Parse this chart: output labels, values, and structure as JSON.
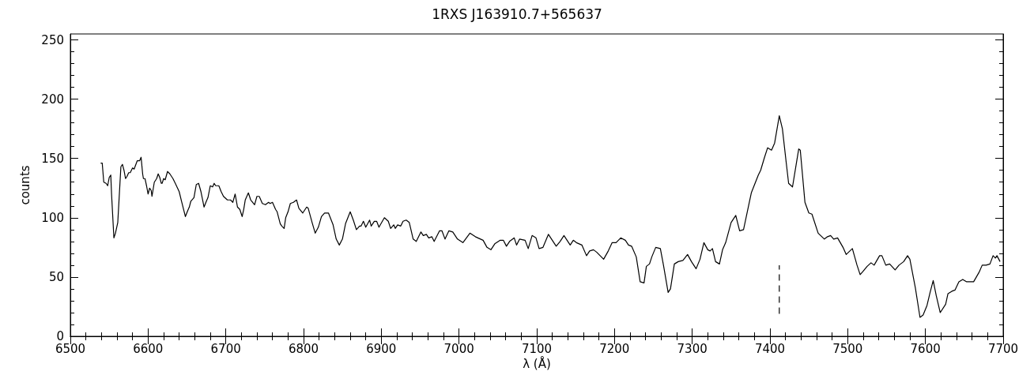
{
  "chart_data": {
    "type": "line",
    "title": "1RXS J163910.7+565637",
    "xlabel": "λ (Å)",
    "ylabel": "counts",
    "xlim": [
      6500,
      7700
    ],
    "xticks": [
      6500,
      6600,
      6700,
      6800,
      6900,
      7000,
      7100,
      7200,
      7300,
      7400,
      7500,
      7600,
      7700
    ],
    "ylim": [
      0,
      255
    ],
    "yticks": [
      0,
      50,
      100,
      150,
      200,
      250
    ],
    "grid": false,
    "marker": "none",
    "series": [
      {
        "color": "#000000",
        "line_style": "solid",
        "x": [
          6539,
          6541,
          6543,
          6546,
          6548,
          6550,
          6552,
          6553,
          6556,
          6558,
          6561,
          6565,
          6567,
          6569,
          6571,
          6573,
          6575,
          6577,
          6580,
          6582,
          6586,
          6589,
          6591,
          6593,
          6594,
          6596,
          6598,
          6600,
          6602,
          6604,
          6605,
          6608,
          6611,
          6613,
          6615,
          6617,
          6618,
          6620,
          6622,
          6625,
          6628,
          6632,
          6635,
          6640,
          6643,
          6648,
          6651,
          6653,
          6655,
          6659,
          6662,
          6665,
          6668,
          6672,
          6675,
          6677,
          6680,
          6683,
          6685,
          6687,
          6691,
          6694,
          6697,
          6702,
          6706,
          6709,
          6712,
          6715,
          6718,
          6721,
          6723,
          6725,
          6729,
          6732,
          6737,
          6740,
          6743,
          6747,
          6751,
          6755,
          6757,
          6760,
          6764,
          6766,
          6770,
          6772,
          6775,
          6777,
          6780,
          6783,
          6787,
          6791,
          6794,
          6799,
          6804,
          6806,
          6811,
          6815,
          6819,
          6823,
          6827,
          6832,
          6835,
          6838,
          6842,
          6846,
          6850,
          6854,
          6860,
          6864,
          6868,
          6872,
          6874,
          6877,
          6880,
          6885,
          6887,
          6891,
          6894,
          6897,
          6904,
          6909,
          6912,
          6916,
          6918,
          6921,
          6925,
          6928,
          6932,
          6936,
          6941,
          6945,
          6951,
          6954,
          6958,
          6961,
          6965,
          6968,
          6975,
          6978,
          6982,
          6987,
          6992,
          6998,
          7005,
          7014,
          7021,
          7031,
          7036,
          7041,
          7046,
          7053,
          7057,
          7061,
          7065,
          7071,
          7074,
          7078,
          7085,
          7089,
          7094,
          7099,
          7103,
          7108,
          7115,
          7125,
          7130,
          7135,
          7139,
          7143,
          7147,
          7151,
          7158,
          7164,
          7168,
          7173,
          7177,
          7186,
          7192,
          7197,
          7202,
          7208,
          7214,
          7218,
          7222,
          7228,
          7233,
          7238,
          7241,
          7245,
          7248,
          7253,
          7259,
          7263,
          7269,
          7272,
          7277,
          7282,
          7288,
          7294,
          7299,
          7305,
          7310,
          7315,
          7320,
          7323,
          7326,
          7330,
          7335,
          7339,
          7343,
          7350,
          7356,
          7361,
          7366,
          7376,
          7385,
          7388,
          7393,
          7397,
          7402,
          7406,
          7412,
          7416,
          7421,
          7424,
          7429,
          7434,
          7437,
          7439,
          7445,
          7450,
          7454,
          7462,
          7470,
          7474,
          7478,
          7482,
          7487,
          7494,
          7498,
          7506,
          7512,
          7516,
          7520,
          7525,
          7530,
          7534,
          7541,
          7544,
          7549,
          7554,
          7561,
          7566,
          7572,
          7577,
          7580,
          7587,
          7593,
          7597,
          7602,
          7606,
          7610,
          7614,
          7619,
          7626,
          7629,
          7634,
          7638,
          7643,
          7648,
          7653,
          7658,
          7662,
          7669,
          7673,
          7678,
          7683,
          7687,
          7690,
          7692,
          7696
        ],
        "values": [
          146,
          146,
          130,
          129,
          127,
          134,
          136,
          120,
          83,
          87,
          96,
          143,
          145,
          140,
          133,
          135,
          138,
          138,
          142,
          141,
          148,
          148,
          151,
          137,
          133,
          133,
          127,
          120,
          125,
          123,
          118,
          130,
          133,
          137,
          134,
          129,
          129,
          133,
          132,
          139,
          137,
          133,
          129,
          122,
          114,
          101,
          106,
          109,
          114,
          117,
          128,
          129,
          122,
          109,
          114,
          117,
          127,
          126,
          129,
          127,
          127,
          122,
          118,
          115,
          115,
          113,
          120,
          109,
          107,
          101,
          107,
          115,
          121,
          115,
          111,
          118,
          118,
          112,
          111,
          113,
          112,
          113,
          107,
          105,
          95,
          93,
          91,
          100,
          105,
          112,
          113,
          115,
          108,
          104,
          109,
          108,
          96,
          87,
          92,
          101,
          104,
          104,
          99,
          94,
          82,
          77,
          82,
          95,
          105,
          98,
          90,
          93,
          93,
          97,
          92,
          98,
          93,
          97,
          97,
          92,
          100,
          97,
          91,
          94,
          91,
          94,
          93,
          97,
          98,
          96,
          82,
          80,
          88,
          85,
          86,
          83,
          84,
          80,
          89,
          89,
          82,
          89,
          88,
          82,
          79,
          87,
          84,
          81,
          75,
          73,
          78,
          81,
          81,
          76,
          80,
          83,
          77,
          82,
          81,
          74,
          85,
          83,
          74,
          75,
          86,
          76,
          80,
          85,
          81,
          77,
          81,
          79,
          77,
          68,
          72,
          73,
          71,
          65,
          72,
          79,
          79,
          83,
          81,
          77,
          76,
          67,
          46,
          45,
          59,
          61,
          67,
          75,
          74,
          60,
          37,
          40,
          61,
          63,
          64,
          69,
          63,
          57,
          65,
          79,
          73,
          72,
          74,
          63,
          61,
          73,
          79,
          96,
          102,
          89,
          90,
          121,
          136,
          140,
          151,
          159,
          157,
          163,
          186,
          175,
          146,
          129,
          126,
          146,
          158,
          157,
          113,
          104,
          103,
          87,
          82,
          84,
          85,
          82,
          83,
          75,
          69,
          74,
          60,
          52,
          55,
          59,
          62,
          60,
          68,
          68,
          60,
          61,
          56,
          60,
          63,
          68,
          65,
          41,
          16,
          18,
          26,
          37,
          47,
          34,
          20,
          27,
          36,
          38,
          39,
          46,
          48,
          46,
          46,
          46,
          54,
          60,
          60,
          61,
          68,
          66,
          68,
          63
        ]
      },
      {
        "color": "#000000",
        "line_style": "dashed",
        "x": [
          7412,
          7412
        ],
        "values": [
          19,
          60
        ]
      }
    ]
  }
}
